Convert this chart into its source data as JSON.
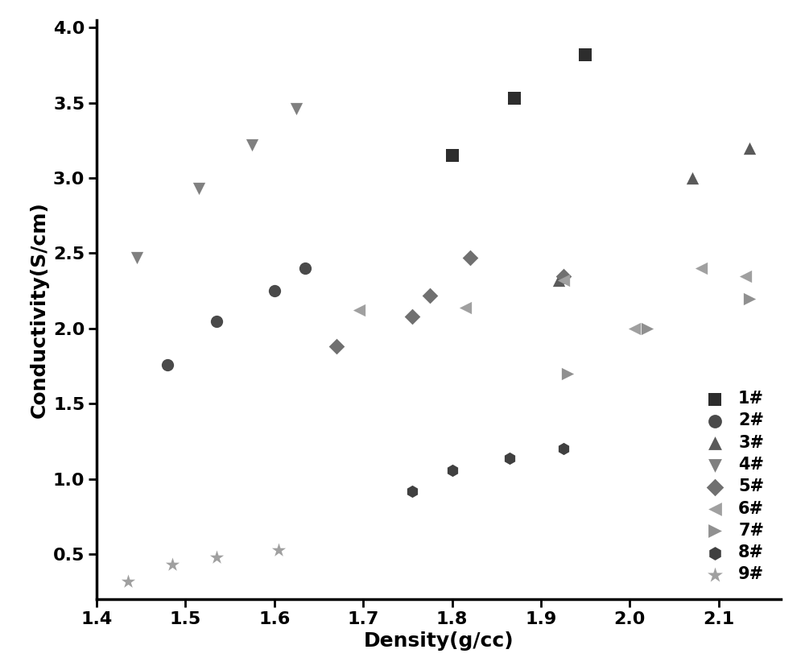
{
  "title": "",
  "xlabel": "Density(g/cc)",
  "ylabel": "Conductivity(S/cm)",
  "xlim": [
    1.4,
    2.17
  ],
  "ylim": [
    0.2,
    4.05
  ],
  "xticks": [
    1.4,
    1.5,
    1.6,
    1.7,
    1.8,
    1.9,
    2.0,
    2.1
  ],
  "yticks": [
    0.5,
    1.0,
    1.5,
    2.0,
    2.5,
    3.0,
    3.5,
    4.0
  ],
  "series": [
    {
      "label": "1#",
      "marker": "s",
      "color": "#2d2d2d",
      "markersize": 11,
      "data": [
        [
          1.8,
          3.15
        ],
        [
          1.87,
          3.53
        ],
        [
          1.95,
          3.82
        ]
      ]
    },
    {
      "label": "2#",
      "marker": "o",
      "color": "#4a4a4a",
      "markersize": 11,
      "data": [
        [
          1.48,
          1.76
        ],
        [
          1.535,
          2.05
        ],
        [
          1.6,
          2.25
        ],
        [
          1.635,
          2.4
        ]
      ]
    },
    {
      "label": "3#",
      "marker": "^",
      "color": "#5a5a5a",
      "markersize": 11,
      "data": [
        [
          1.92,
          2.32
        ],
        [
          2.07,
          3.0
        ],
        [
          2.135,
          3.2
        ]
      ]
    },
    {
      "label": "4#",
      "marker": "v",
      "color": "#808080",
      "markersize": 11,
      "data": [
        [
          1.445,
          2.47
        ],
        [
          1.515,
          2.93
        ],
        [
          1.575,
          3.22
        ],
        [
          1.625,
          3.46
        ]
      ]
    },
    {
      "label": "5#",
      "marker": "D",
      "color": "#707070",
      "markersize": 10,
      "data": [
        [
          1.67,
          1.88
        ],
        [
          1.755,
          2.08
        ],
        [
          1.775,
          2.22
        ],
        [
          1.82,
          2.47
        ],
        [
          1.925,
          2.35
        ]
      ]
    },
    {
      "label": "6#",
      "marker": "<",
      "color": "#a0a0a0",
      "markersize": 11,
      "data": [
        [
          1.695,
          2.12
        ],
        [
          1.815,
          2.14
        ],
        [
          1.925,
          2.32
        ],
        [
          2.005,
          2.0
        ],
        [
          2.08,
          2.4
        ],
        [
          2.13,
          2.35
        ]
      ]
    },
    {
      "label": "7#",
      "marker": ">",
      "color": "#909090",
      "markersize": 11,
      "data": [
        [
          1.93,
          1.7
        ],
        [
          2.02,
          2.0
        ],
        [
          2.135,
          2.2
        ]
      ]
    },
    {
      "label": "8#",
      "marker": "h",
      "color": "#404040",
      "markersize": 11,
      "data": [
        [
          1.755,
          0.92
        ],
        [
          1.8,
          1.06
        ],
        [
          1.865,
          1.14
        ],
        [
          1.925,
          1.2
        ]
      ]
    },
    {
      "label": "9#",
      "marker": "*",
      "color": "#a0a0a0",
      "markersize": 13,
      "data": [
        [
          1.435,
          0.32
        ],
        [
          1.485,
          0.43
        ],
        [
          1.535,
          0.48
        ],
        [
          1.605,
          0.53
        ]
      ]
    }
  ],
  "background_color": "#ffffff",
  "axis_linewidth": 2.5,
  "tick_labelsize": 16,
  "axis_labelsize": 18,
  "legend_fontsize": 15,
  "figsize": [
    10.0,
    8.27
  ],
  "dpi": 100
}
